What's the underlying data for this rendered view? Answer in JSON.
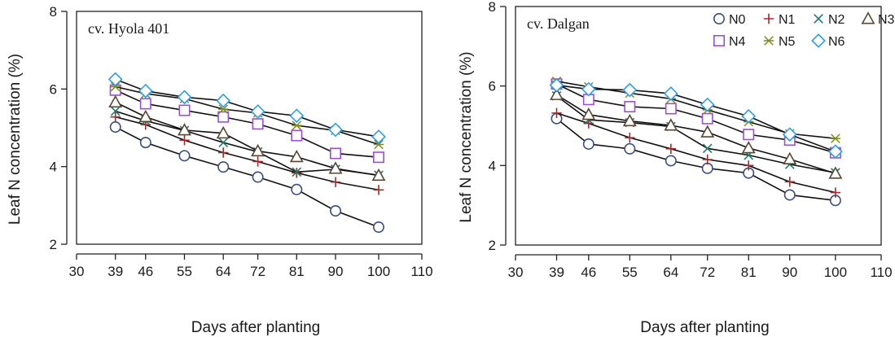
{
  "colors": {
    "N0": "#3a4d7a",
    "N1": "#a52a2a",
    "N2": "#1f7a6e",
    "N3": "#5a4632",
    "N4": "#9b4fd6",
    "N5": "#7d8c1e",
    "N6": "#2e9ee8"
  },
  "markers": {
    "N0": "circle",
    "N1": "plus",
    "N2": "x",
    "N3": "triangle",
    "N4": "square",
    "N5": "asterisk",
    "N6": "diamond"
  },
  "chart_data": [
    {
      "type": "line",
      "title": "cv. Hyola 401",
      "xlabel": "Days after planting",
      "ylabel": "Leaf N concentration (%)",
      "xlim": [
        30,
        110
      ],
      "ylim": [
        2,
        8
      ],
      "xticks": [
        30,
        39,
        46,
        55,
        64,
        72,
        81,
        90,
        100,
        110
      ],
      "yticks": [
        2,
        4,
        6,
        8
      ],
      "x": [
        39,
        46,
        55,
        64,
        72,
        81,
        90,
        100
      ],
      "legend": false,
      "series": [
        {
          "name": "N0",
          "values": [
            5.02,
            4.62,
            4.28,
            3.99,
            3.73,
            3.41,
            2.86,
            2.44
          ]
        },
        {
          "name": "N1",
          "values": [
            5.28,
            5.08,
            4.68,
            4.36,
            4.13,
            3.84,
            3.6,
            3.4
          ]
        },
        {
          "name": "N2",
          "values": [
            5.43,
            5.18,
            4.93,
            4.62,
            4.38,
            3.86,
            3.93,
            3.78
          ]
        },
        {
          "name": "N3",
          "values": [
            5.66,
            5.28,
            4.94,
            4.86,
            4.4,
            4.25,
            3.95,
            3.77
          ]
        },
        {
          "name": "N4",
          "values": [
            5.97,
            5.62,
            5.45,
            5.28,
            5.1,
            4.8,
            4.34,
            4.24
          ]
        },
        {
          "name": "N5",
          "values": [
            6.06,
            5.88,
            5.75,
            5.48,
            5.38,
            5.06,
            4.93,
            4.57
          ]
        },
        {
          "name": "N6",
          "values": [
            6.25,
            5.95,
            5.79,
            5.7,
            5.42,
            5.31,
            4.95,
            4.77
          ]
        }
      ]
    },
    {
      "type": "line",
      "title": "cv. Dalgan",
      "xlabel": "Days after planting",
      "ylabel": "Leaf N concentration (%)",
      "xlim": [
        30,
        110
      ],
      "ylim": [
        2,
        8
      ],
      "xticks": [
        30,
        39,
        46,
        55,
        64,
        72,
        81,
        90,
        100,
        110
      ],
      "yticks": [
        2,
        4,
        6,
        8
      ],
      "x": [
        39,
        46,
        55,
        64,
        72,
        81,
        90,
        100
      ],
      "legend": true,
      "legend_position": "top-right",
      "series": [
        {
          "name": "N0",
          "values": [
            5.18,
            4.54,
            4.42,
            4.12,
            3.93,
            3.81,
            3.26,
            3.12
          ]
        },
        {
          "name": "N1",
          "values": [
            5.32,
            5.06,
            4.7,
            4.42,
            4.15,
            4.0,
            3.59,
            3.32
          ]
        },
        {
          "name": "N2",
          "values": [
            5.75,
            5.15,
            5.08,
            4.98,
            4.43,
            4.26,
            4.03,
            3.82
          ]
        },
        {
          "name": "N3",
          "values": [
            5.78,
            5.28,
            5.12,
            5.01,
            4.84,
            4.44,
            4.16,
            3.8
          ]
        },
        {
          "name": "N4",
          "values": [
            6.05,
            5.66,
            5.48,
            5.43,
            5.18,
            4.78,
            4.64,
            4.32
          ]
        },
        {
          "name": "N5",
          "values": [
            6.12,
            5.98,
            5.82,
            5.68,
            5.4,
            5.1,
            4.8,
            4.68
          ]
        },
        {
          "name": "N6",
          "values": [
            6.02,
            5.92,
            5.9,
            5.81,
            5.53,
            5.24,
            4.78,
            4.35
          ]
        }
      ]
    }
  ]
}
